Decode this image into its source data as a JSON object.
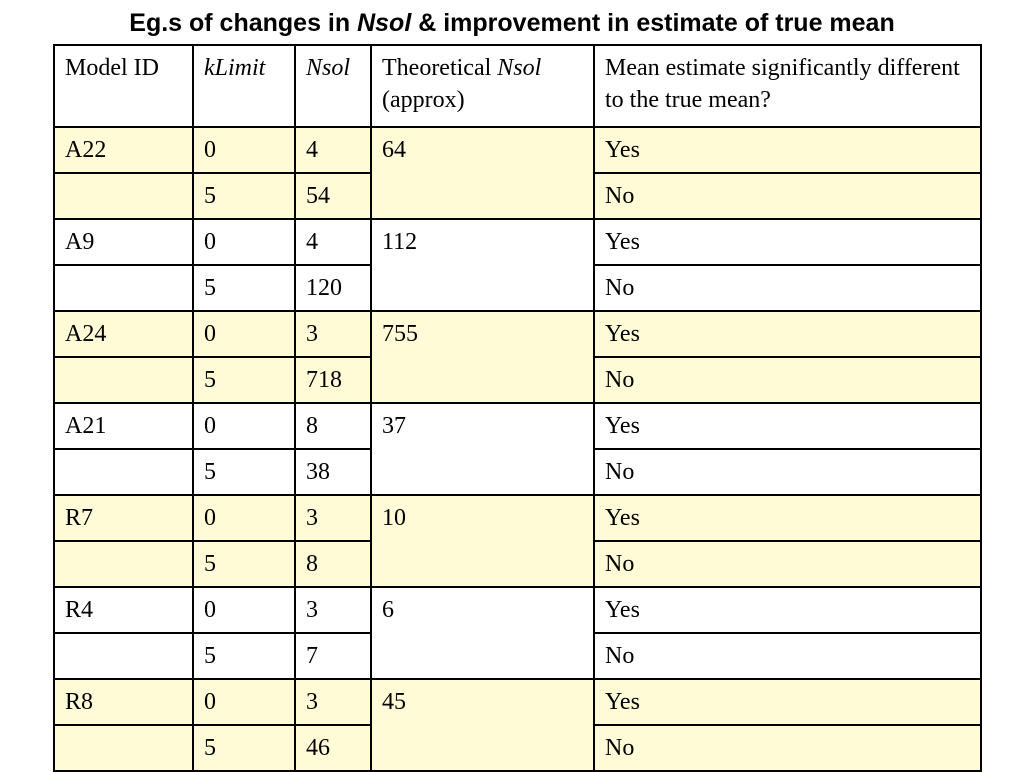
{
  "title": {
    "prefix": "Eg.s of changes in ",
    "italic": "Nsol",
    "suffix": " & improvement in estimate of true mean"
  },
  "table": {
    "headers": {
      "model_id": "Model ID",
      "klimit": "kLimit",
      "nsol": "Nsol",
      "theoretical_prefix": "Theoretical ",
      "theoretical_italic": "Nsol",
      "theoretical_suffix": "(approx)",
      "mean_estimate": "Mean estimate significantly different to the true mean?"
    },
    "groups": [
      {
        "model": "A22",
        "theoretical": "64",
        "shade": "#fffbd6",
        "rows": [
          {
            "k": "0",
            "nsol": "4",
            "sig": "Yes"
          },
          {
            "k": "5",
            "nsol": "54",
            "sig": "No"
          }
        ]
      },
      {
        "model": "A9",
        "theoretical": "112",
        "shade": "#ffffff",
        "rows": [
          {
            "k": "0",
            "nsol": "4",
            "sig": "Yes"
          },
          {
            "k": "5",
            "nsol": "120",
            "sig": "No"
          }
        ]
      },
      {
        "model": "A24",
        "theoretical": "755",
        "shade": "#fffbd6",
        "rows": [
          {
            "k": "0",
            "nsol": "3",
            "sig": "Yes"
          },
          {
            "k": "5",
            "nsol": "718",
            "sig": "No"
          }
        ]
      },
      {
        "model": "A21",
        "theoretical": "37",
        "shade": "#ffffff",
        "rows": [
          {
            "k": "0",
            "nsol": "8",
            "sig": "Yes"
          },
          {
            "k": "5",
            "nsol": "38",
            "sig": "No"
          }
        ]
      },
      {
        "model": "R7",
        "theoretical": "10",
        "shade": "#fffbd6",
        "rows": [
          {
            "k": "0",
            "nsol": "3",
            "sig": "Yes"
          },
          {
            "k": "5",
            "nsol": "8",
            "sig": "No"
          }
        ]
      },
      {
        "model": "R4",
        "theoretical": "6",
        "shade": "#ffffff",
        "rows": [
          {
            "k": "0",
            "nsol": "3",
            "sig": "Yes"
          },
          {
            "k": "5",
            "nsol": "7",
            "sig": "No"
          }
        ]
      },
      {
        "model": "R8",
        "theoretical": "45",
        "shade": "#fffbd6",
        "rows": [
          {
            "k": "0",
            "nsol": "3",
            "sig": "Yes"
          },
          {
            "k": "5",
            "nsol": "46",
            "sig": "No"
          }
        ]
      }
    ]
  }
}
